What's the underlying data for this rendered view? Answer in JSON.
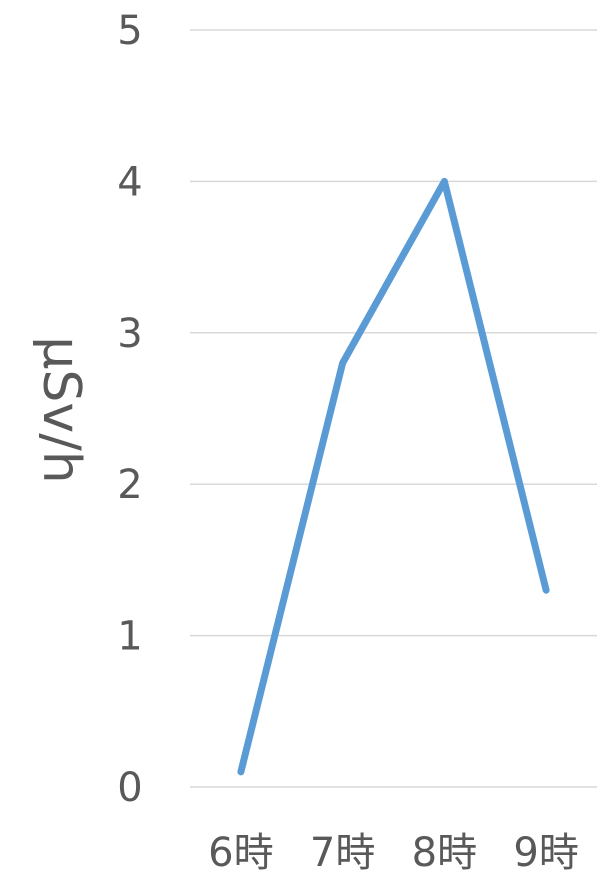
{
  "chart_data": {
    "type": "line",
    "title": "",
    "xlabel": "",
    "ylabel": "μSv/h",
    "categories": [
      "6時",
      "7時",
      "8時",
      "9時"
    ],
    "series": [
      {
        "color": "#5b9bd5",
        "values": [
          0.1,
          2.8,
          4.0,
          1.3
        ]
      }
    ],
    "ylim": [
      0,
      5
    ],
    "yticks": [
      0,
      1,
      2,
      3,
      4,
      5
    ],
    "grid": true,
    "gridline_color": "#d9d9d9",
    "legend": "none"
  }
}
